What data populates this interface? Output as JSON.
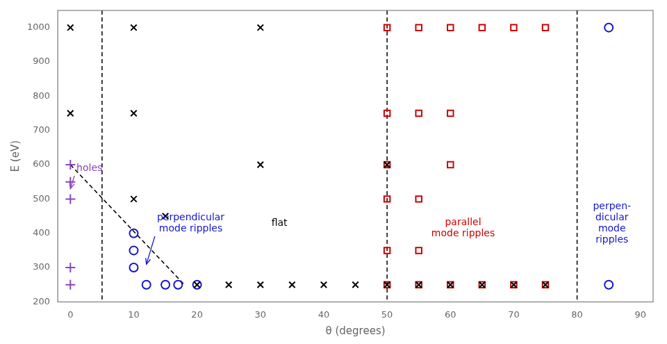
{
  "chart_data": {
    "type": "scatter",
    "xlabel": "θ (degrees)",
    "ylabel": "E (eV)",
    "xlim": [
      -2,
      92
    ],
    "ylim": [
      200,
      1050
    ],
    "xticks": [
      0,
      10,
      20,
      30,
      40,
      50,
      60,
      70,
      80,
      90
    ],
    "yticks": [
      200,
      300,
      400,
      500,
      600,
      700,
      800,
      900,
      1000
    ],
    "grid": false,
    "series": [
      {
        "type": "scatter",
        "marker": "x",
        "color": "black",
        "x": [
          0,
          0,
          10,
          10,
          10,
          15,
          30,
          30,
          20,
          25,
          30,
          35,
          40,
          45,
          50,
          50,
          55,
          60,
          65,
          70,
          75
        ],
        "values": [
          1000,
          750,
          1000,
          750,
          500,
          450,
          1000,
          600,
          250,
          250,
          250,
          250,
          250,
          250,
          600,
          250,
          250,
          250,
          250,
          250,
          250
        ]
      },
      {
        "type": "scatter",
        "marker": "circle",
        "color": "#1414CC",
        "x": [
          10,
          10,
          10,
          12,
          15,
          17,
          20,
          85,
          85
        ],
        "values": [
          400,
          350,
          300,
          250,
          250,
          250,
          250,
          1000,
          250
        ]
      },
      {
        "type": "scatter",
        "marker": "square",
        "color": "#CC0000",
        "x": [
          50,
          55,
          60,
          65,
          70,
          75,
          50,
          55,
          60,
          50,
          60,
          50,
          55,
          50,
          55,
          50,
          55,
          60,
          65,
          70,
          75
        ],
        "values": [
          1000,
          1000,
          1000,
          1000,
          1000,
          1000,
          750,
          750,
          750,
          600,
          600,
          500,
          500,
          350,
          350,
          250,
          250,
          250,
          250,
          250,
          250
        ]
      },
      {
        "type": "scatter",
        "marker": "plus",
        "color": "#8844BB",
        "x": [
          0,
          0,
          0,
          0,
          0
        ],
        "values": [
          600,
          550,
          500,
          300,
          250
        ]
      },
      {
        "type": "line",
        "line_style": "dashed",
        "color": "black",
        "x": [
          0,
          18
        ],
        "values": [
          600,
          250
        ]
      }
    ],
    "vlines": {
      "x": [
        5,
        50,
        80
      ],
      "color": "black",
      "line_style": "dashed"
    },
    "annotations": [
      {
        "text": "holes",
        "x": 3,
        "y": 590,
        "color": "#8844BB",
        "arrow_to": [
          0,
          530
        ]
      },
      {
        "text": "perpendicular\nmode ripples",
        "x": 19,
        "y": 430,
        "color": "#1414CC",
        "arrow_to": [
          12,
          310
        ]
      },
      {
        "text": "flat",
        "x": 33,
        "y": 430,
        "color": "black"
      },
      {
        "text": "parallel\nmode ripples",
        "x": 62,
        "y": 415,
        "color": "#CC0000"
      },
      {
        "text": "perpen-\ndicular\nmode\nripples",
        "x": 85.5,
        "y": 430,
        "color": "#1414CC"
      }
    ]
  }
}
